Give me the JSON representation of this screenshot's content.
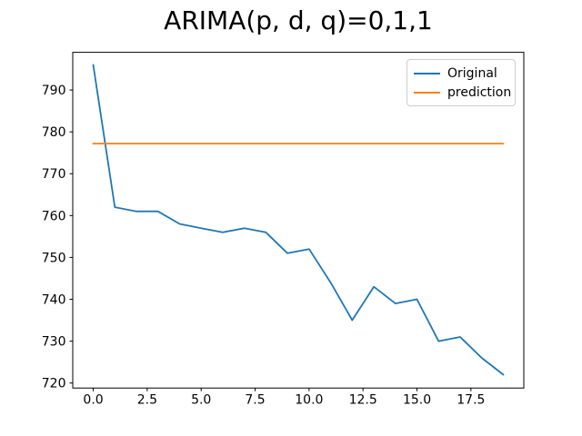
{
  "chart_data": {
    "type": "line",
    "title": "ARIMA(p, d, q)=0,1,1",
    "xlabel": "",
    "ylabel": "",
    "grid": false,
    "legend_position": "upper right",
    "xlim": [
      -0.95,
      19.95
    ],
    "ylim": [
      718.8,
      799.0
    ],
    "xticks": [
      "0.0",
      "2.5",
      "5.0",
      "7.5",
      "10.0",
      "12.5",
      "15.0",
      "17.5"
    ],
    "yticks": [
      "720",
      "730",
      "740",
      "750",
      "760",
      "770",
      "780",
      "790"
    ],
    "x": [
      0,
      1,
      2,
      3,
      4,
      5,
      6,
      7,
      8,
      9,
      10,
      11,
      12,
      13,
      14,
      15,
      16,
      17,
      18,
      19
    ],
    "series": [
      {
        "name": "Original",
        "color": "#1f77b4",
        "values": [
          796,
          762,
          761,
          761,
          758,
          757,
          756,
          757,
          756,
          751,
          752,
          744,
          735,
          743,
          739,
          740,
          730,
          731,
          726,
          722
        ]
      },
      {
        "name": "prediction",
        "color": "#ff7f0e",
        "values": [
          777.2,
          777.2,
          777.2,
          777.2,
          777.2,
          777.2,
          777.2,
          777.2,
          777.2,
          777.2,
          777.2,
          777.2,
          777.2,
          777.2,
          777.2,
          777.2,
          777.2,
          777.2,
          777.2,
          777.2
        ]
      }
    ]
  }
}
